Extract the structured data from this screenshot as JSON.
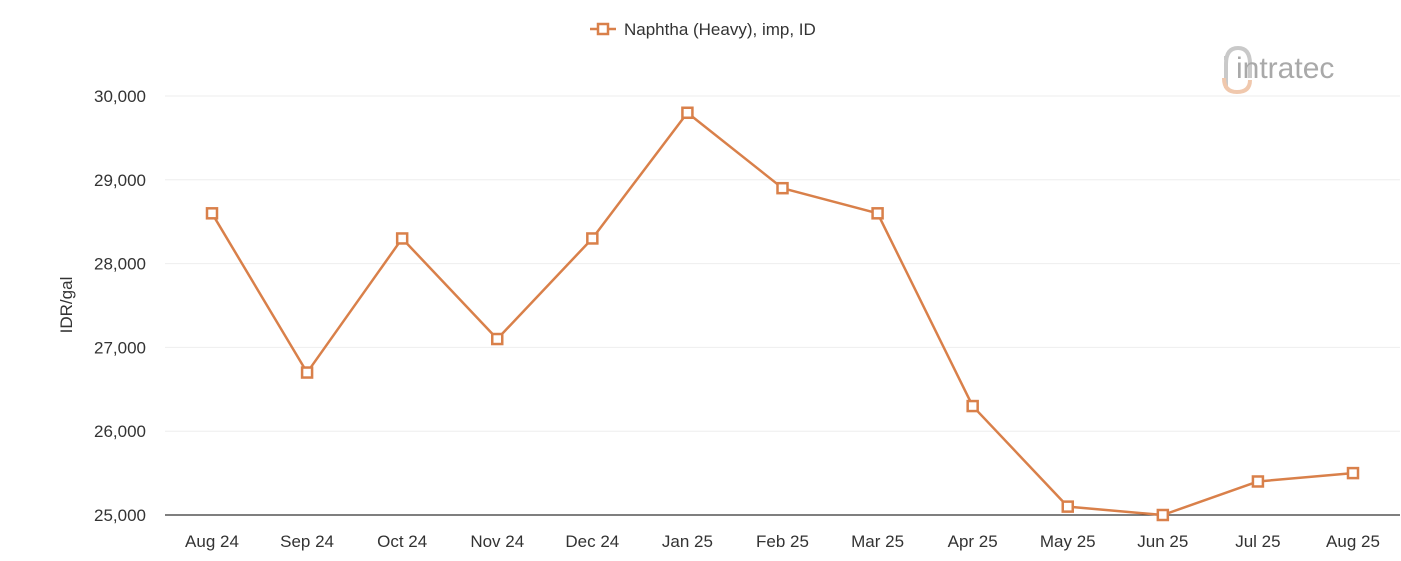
{
  "chart_data": {
    "type": "line",
    "categories": [
      "Aug 24",
      "Sep 24",
      "Oct 24",
      "Nov 24",
      "Dec 24",
      "Jan 25",
      "Feb 25",
      "Mar 25",
      "Apr 25",
      "May 25",
      "Jun 25",
      "Jul 25",
      "Aug 25"
    ],
    "series": [
      {
        "name": "Naphtha (Heavy), imp, ID",
        "color": "#d9804a",
        "marker": "square-open",
        "values": [
          28600,
          26700,
          28300,
          27100,
          28300,
          29800,
          28900,
          28600,
          26300,
          25100,
          25000,
          25400,
          25500
        ]
      }
    ],
    "ylabel": "IDR/gal",
    "xlabel": "",
    "ylim": [
      25000,
      30000
    ],
    "yticks": [
      25000,
      26000,
      27000,
      28000,
      29000,
      30000
    ],
    "ytick_labels": [
      "25,000",
      "26,000",
      "27,000",
      "28,000",
      "29,000",
      "30,000"
    ],
    "grid": true,
    "legend_position": "top-center"
  },
  "watermark": {
    "text": "intratec",
    "icon": "intratec-logo-icon"
  }
}
